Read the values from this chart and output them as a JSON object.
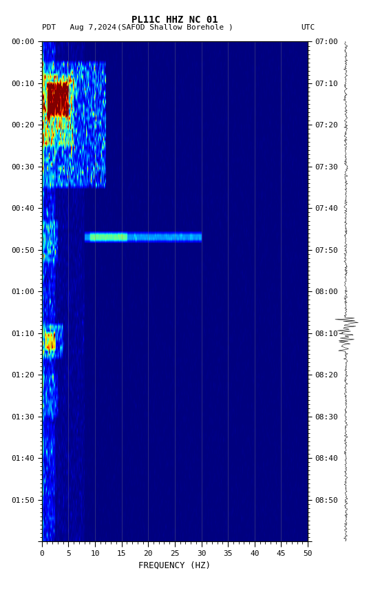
{
  "title_line1": "PL11C HHZ NC 01",
  "title_line2_left": "PDT   Aug 7,2024",
  "title_line2_center": "(SAFOD Shallow Borehole )",
  "title_line2_right": "UTC",
  "xlabel": "FREQUENCY (HZ)",
  "freq_min": 0,
  "freq_max": 50,
  "freq_ticks": [
    0,
    5,
    10,
    15,
    20,
    25,
    30,
    35,
    40,
    45,
    50
  ],
  "time_labels_left": [
    "00:00",
    "00:10",
    "00:20",
    "00:30",
    "00:40",
    "00:50",
    "01:00",
    "01:10",
    "01:20",
    "01:30",
    "01:40",
    "01:50"
  ],
  "time_labels_right": [
    "07:00",
    "07:10",
    "07:20",
    "07:30",
    "07:40",
    "07:50",
    "08:00",
    "08:10",
    "08:20",
    "08:30",
    "08:40",
    "08:50"
  ],
  "n_time": 120,
  "n_freq": 500,
  "background_color": "#ffffff",
  "colormap": "jet"
}
